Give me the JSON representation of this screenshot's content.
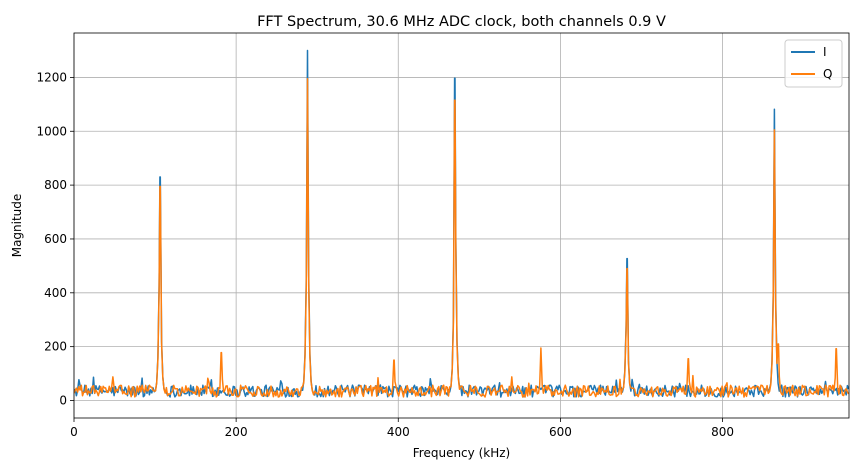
{
  "chart_data": {
    "type": "line",
    "title": "FFT Spectrum, 30.6 MHz ADC clock, both channels 0.9 V",
    "xlabel": "Frequency (kHz)",
    "ylabel": "Magnitude",
    "xlim": [
      0,
      956
    ],
    "ylim": [
      -65,
      1365
    ],
    "xticks": [
      0,
      200,
      400,
      600,
      800
    ],
    "yticks": [
      0,
      200,
      400,
      600,
      800,
      1000,
      1200
    ],
    "grid": true,
    "legend_position": "top-right",
    "noise_floor": {
      "mean": 35,
      "range": [
        0,
        100
      ]
    },
    "series": [
      {
        "name": "I",
        "color": "#1f77b4",
        "peaks": [
          {
            "x": 106,
            "y": 830
          },
          {
            "x": 288,
            "y": 1300
          },
          {
            "x": 470,
            "y": 1197
          },
          {
            "x": 682,
            "y": 527
          },
          {
            "x": 864,
            "y": 1082
          }
        ]
      },
      {
        "name": "Q",
        "color": "#ff7f0e",
        "peaks": [
          {
            "x": 106,
            "y": 795
          },
          {
            "x": 182,
            "y": 178
          },
          {
            "x": 288,
            "y": 1195
          },
          {
            "x": 395,
            "y": 150
          },
          {
            "x": 470,
            "y": 1115
          },
          {
            "x": 576,
            "y": 195
          },
          {
            "x": 682,
            "y": 490
          },
          {
            "x": 758,
            "y": 155
          },
          {
            "x": 864,
            "y": 1005
          },
          {
            "x": 869,
            "y": 210
          },
          {
            "x": 940,
            "y": 192
          }
        ]
      }
    ]
  }
}
